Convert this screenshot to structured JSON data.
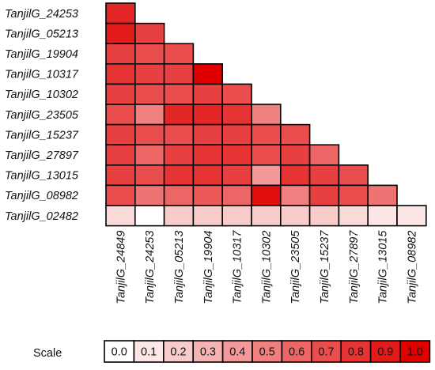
{
  "chart_data": {
    "type": "heatmap",
    "layout": "lower-triangle",
    "rows": [
      "TanjilG_24253",
      "TanjilG_05213",
      "TanjilG_19904",
      "TanjilG_10317",
      "TanjilG_10302",
      "TanjilG_23505",
      "TanjilG_15237",
      "TanjilG_27897",
      "TanjilG_13015",
      "TanjilG_08982",
      "TanjilG_02482"
    ],
    "columns": [
      "TanjilG_24849",
      "TanjilG_24253",
      "TanjilG_05213",
      "TanjilG_19904",
      "TanjilG_10317",
      "TanjilG_10302",
      "TanjilG_23505",
      "TanjilG_15237",
      "TanjilG_27897",
      "TanjilG_13015",
      "TanjilG_08982"
    ],
    "values": [
      [
        0.85
      ],
      [
        0.9,
        0.75
      ],
      [
        0.75,
        0.7,
        0.7
      ],
      [
        0.8,
        0.75,
        0.75,
        1.0
      ],
      [
        0.75,
        0.7,
        0.7,
        0.75,
        0.7
      ],
      [
        0.7,
        0.5,
        0.85,
        0.85,
        0.8,
        0.5
      ],
      [
        0.75,
        0.7,
        0.7,
        0.75,
        0.75,
        0.7,
        0.7
      ],
      [
        0.75,
        0.6,
        0.75,
        0.8,
        0.8,
        0.7,
        0.75,
        0.6
      ],
      [
        0.75,
        0.7,
        0.8,
        0.8,
        0.75,
        0.4,
        0.8,
        0.75,
        0.7
      ],
      [
        0.7,
        0.55,
        0.6,
        0.65,
        0.6,
        0.95,
        0.5,
        0.75,
        0.7,
        0.55
      ],
      [
        0.15,
        0.0,
        0.2,
        0.2,
        0.2,
        0.2,
        0.2,
        0.2,
        0.15,
        0.1,
        0.1
      ]
    ],
    "color_low": "#ffffff",
    "color_high": "#e00000",
    "scale": {
      "label": "Scale",
      "ticks": [
        "0.0",
        "0.1",
        "0.2",
        "0.3",
        "0.4",
        "0.5",
        "0.6",
        "0.7",
        "0.8",
        "0.9",
        "1.0"
      ]
    }
  }
}
